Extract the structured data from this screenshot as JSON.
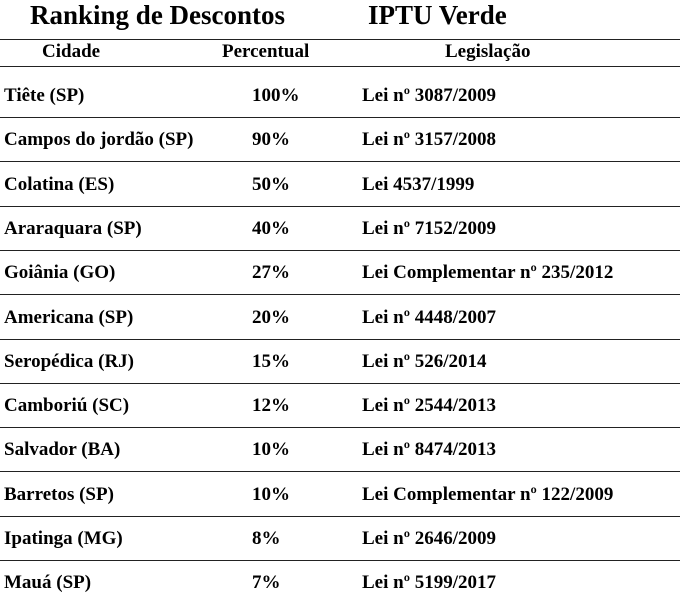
{
  "header": {
    "title": "Ranking de Descontos",
    "subtitle": "IPTU Verde"
  },
  "table": {
    "columns": [
      "Cidade",
      "Percentual",
      "Legislação"
    ],
    "rows": [
      [
        "Tiête (SP)",
        "100%",
        "Lei nº 3087/2009"
      ],
      [
        "Campos do jordão (SP)",
        "90%",
        "Lei nº 3157/2008"
      ],
      [
        "Colatina (ES)",
        "50%",
        "Lei 4537/1999"
      ],
      [
        "Araraquara (SP)",
        "40%",
        "Lei nº 7152/2009"
      ],
      [
        "Goiânia (GO)",
        "27%",
        "Lei Complementar nº 235/2012"
      ],
      [
        "Americana (SP)",
        "20%",
        "Lei nº 4448/2007"
      ],
      [
        "Seropédica (RJ)",
        "15%",
        "Lei nº 526/2014"
      ],
      [
        "Camboriú (SC)",
        "12%",
        "Lei nº 2544/2013"
      ],
      [
        "Salvador (BA)",
        "10%",
        "Lei nº 8474/2013"
      ],
      [
        "Barretos (SP)",
        "10%",
        "Lei Complementar nº 122/2009"
      ],
      [
        "Ipatinga (MG)",
        "8%",
        "Lei nº 2646/2009"
      ],
      [
        "Mauá (SP)",
        "7%",
        "Lei nº 5199/2017"
      ]
    ]
  }
}
